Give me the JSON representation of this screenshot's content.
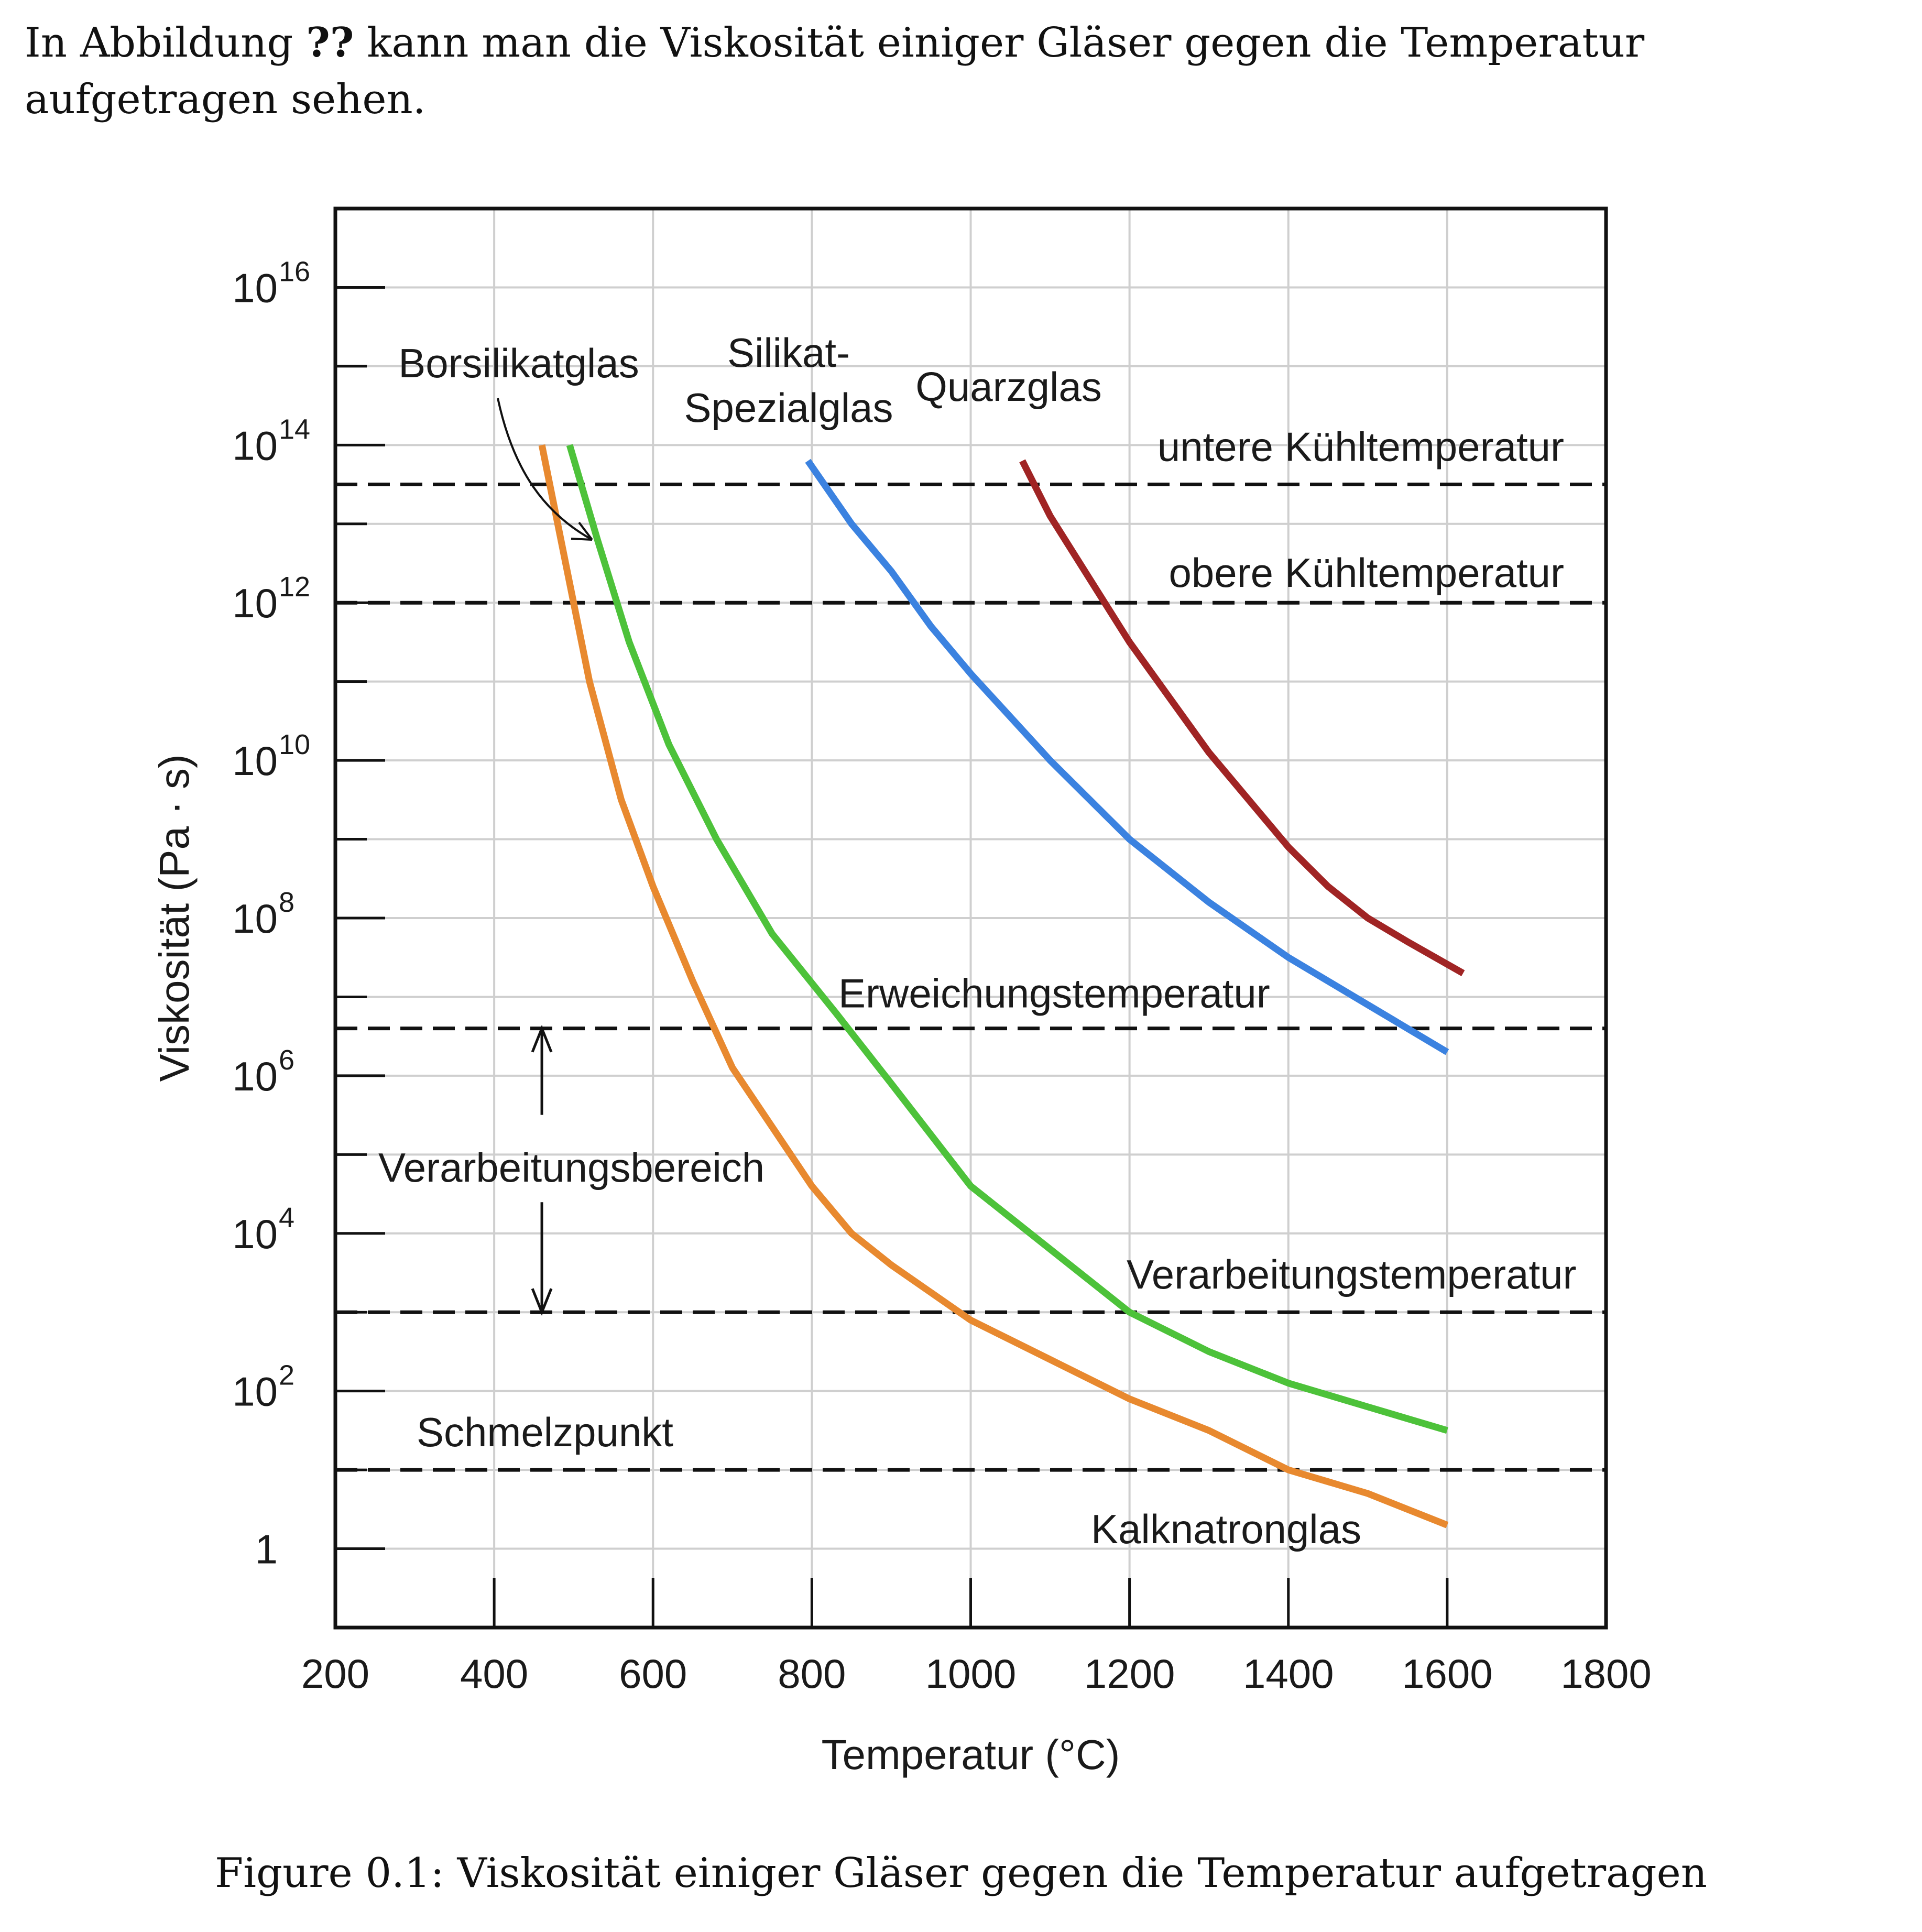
{
  "text": {
    "before": "In Abbildung ",
    "ref": "??",
    "after": " kann man die Viskosität einiger Gläser gegen die Temperatur aufgetragen sehen."
  },
  "caption": "Figure 0.1: Viskosität einiger Gläser gegen die Temperatur aufgetragen",
  "chart_data": {
    "type": "line",
    "xlabel": "Temperatur (°C)",
    "ylabel": "Viskosität (Pa · s)",
    "xlim": [
      200,
      1800
    ],
    "ylim_log10": [
      -1,
      17
    ],
    "y_scale": "log",
    "grid": true,
    "x_ticks": [
      200,
      400,
      600,
      800,
      1000,
      1200,
      1400,
      1600,
      1800
    ],
    "y_ticks": [
      {
        "exp": 16,
        "base": "10",
        "sup": "16"
      },
      {
        "exp": 14,
        "base": "10",
        "sup": "14"
      },
      {
        "exp": 12,
        "base": "10",
        "sup": "12"
      },
      {
        "exp": 10,
        "base": "10",
        "sup": "10"
      },
      {
        "exp": 8,
        "base": "10",
        "sup": "8"
      },
      {
        "exp": 6,
        "base": "10",
        "sup": "6"
      },
      {
        "exp": 4,
        "base": "10",
        "sup": "4"
      },
      {
        "exp": 2,
        "base": "10",
        "sup": "2"
      },
      {
        "exp": 0,
        "base": "1",
        "sup": ""
      }
    ],
    "reference_lines": [
      {
        "label": "untere Kühltemperatur",
        "log10": 13.5
      },
      {
        "label": "obere Kühltemperatur",
        "log10": 12
      },
      {
        "label": "Erweichungstemperatur",
        "log10": 6.6
      },
      {
        "label": "Verarbeitungstemperatur",
        "log10": 3
      },
      {
        "label": "Schmelzpunkt",
        "log10": 1
      }
    ],
    "range_annotation": {
      "label": "Verarbeitungsbereich",
      "x": 460,
      "from_log10": 6.6,
      "to_log10": 3
    },
    "series": [
      {
        "name": "Kalknatronglas",
        "color": "#e8892f",
        "x": [
          460,
          490,
          520,
          560,
          600,
          650,
          700,
          760,
          800,
          850,
          900,
          1000,
          1100,
          1200,
          1300,
          1400,
          1500,
          1600
        ],
        "log10": [
          14,
          12.5,
          11,
          9.5,
          8.4,
          7.2,
          6.1,
          5.2,
          4.6,
          4.0,
          3.6,
          2.9,
          2.4,
          1.9,
          1.5,
          1.0,
          0.7,
          0.3
        ]
      },
      {
        "name": "Borsilikatglas",
        "color": "#4dc23a",
        "x": [
          495,
          530,
          570,
          620,
          680,
          750,
          830,
          900,
          1000,
          1100,
          1200,
          1300,
          1400,
          1500,
          1600
        ],
        "log10": [
          14,
          12.8,
          11.5,
          10.2,
          9,
          7.8,
          6.8,
          5.9,
          4.6,
          3.8,
          3.0,
          2.5,
          2.1,
          1.8,
          1.5
        ]
      },
      {
        "name": "Silikat-Spezialglas",
        "color": "#3b82e0",
        "x": [
          795,
          850,
          900,
          950,
          1000,
          1100,
          1200,
          1300,
          1400,
          1500,
          1600
        ],
        "log10": [
          13.8,
          13.0,
          12.4,
          11.7,
          11.1,
          10.0,
          9.0,
          8.2,
          7.5,
          6.9,
          6.3
        ]
      },
      {
        "name": "Quarzglas",
        "color": "#a02424",
        "x": [
          1065,
          1100,
          1150,
          1200,
          1250,
          1300,
          1350,
          1400,
          1450,
          1500,
          1550,
          1620
        ],
        "log10": [
          13.8,
          13.1,
          12.3,
          11.5,
          10.8,
          10.1,
          9.5,
          8.9,
          8.4,
          8.0,
          7.7,
          7.3
        ]
      }
    ],
    "labels": [
      {
        "text": "Borsilikatglas",
        "for": "Borsilikatglas"
      },
      {
        "text": "Silikat-",
        "for": "Silikat-Spezialglas"
      },
      {
        "text": "Spezialglas",
        "for": "Silikat-Spezialglas"
      },
      {
        "text": "Quarzglas",
        "for": "Quarzglas"
      },
      {
        "text": "Kalknatronglas",
        "for": "Kalknatronglas"
      }
    ]
  }
}
